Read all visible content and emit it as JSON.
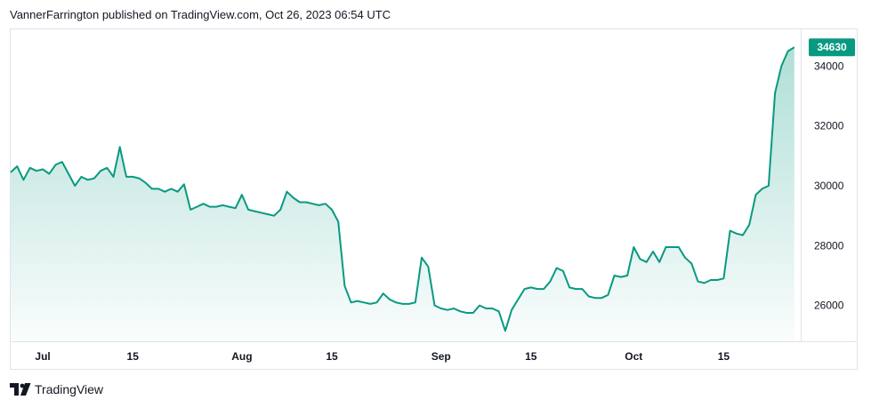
{
  "header": {
    "published_text": "VannerFarrington published on TradingView.com, Oct 26, 2023 06:54 UTC"
  },
  "branding": {
    "logo_icon": "tradingview-logo-icon",
    "name": "TradingView"
  },
  "colors": {
    "line": "#089981",
    "fill_top": "#089981",
    "badge_bg": "#089981",
    "grid": "#e0e3eb",
    "text": "#131722"
  },
  "chart_data": {
    "type": "area",
    "title": "",
    "xlabel": "",
    "ylabel": "",
    "last_price_label": "34630",
    "x_tick_labels": [
      "Jul",
      "15",
      "Aug",
      "15",
      "Sep",
      "15",
      "Oct",
      "15"
    ],
    "x_tick_dates": [
      "2023-07-01",
      "2023-07-15",
      "2023-08-01",
      "2023-08-15",
      "2023-09-01",
      "2023-09-15",
      "2023-10-01",
      "2023-10-15"
    ],
    "y_tick_labels": [
      "34000",
      "32000",
      "30000",
      "28000",
      "26000"
    ],
    "y_ticks": [
      34000,
      32000,
      30000,
      28000,
      26000
    ],
    "xlim": [
      "2023-06-26",
      "2023-10-27"
    ],
    "ylim": [
      24800,
      35200
    ],
    "grid": false,
    "series": [
      {
        "values": [
          [
            "2023-06-26",
            30450
          ],
          [
            "2023-06-27",
            30650
          ],
          [
            "2023-06-28",
            30200
          ],
          [
            "2023-06-29",
            30600
          ],
          [
            "2023-06-30",
            30500
          ],
          [
            "2023-07-01",
            30550
          ],
          [
            "2023-07-02",
            30400
          ],
          [
            "2023-07-03",
            30700
          ],
          [
            "2023-07-04",
            30800
          ],
          [
            "2023-07-05",
            30400
          ],
          [
            "2023-07-06",
            30000
          ],
          [
            "2023-07-07",
            30300
          ],
          [
            "2023-07-08",
            30200
          ],
          [
            "2023-07-09",
            30250
          ],
          [
            "2023-07-10",
            30500
          ],
          [
            "2023-07-11",
            30600
          ],
          [
            "2023-07-12",
            30300
          ],
          [
            "2023-07-13",
            31300
          ],
          [
            "2023-07-14",
            30300
          ],
          [
            "2023-07-15",
            30300
          ],
          [
            "2023-07-16",
            30250
          ],
          [
            "2023-07-17",
            30100
          ],
          [
            "2023-07-18",
            29900
          ],
          [
            "2023-07-19",
            29900
          ],
          [
            "2023-07-20",
            29800
          ],
          [
            "2023-07-21",
            29900
          ],
          [
            "2023-07-22",
            29800
          ],
          [
            "2023-07-23",
            30050
          ],
          [
            "2023-07-24",
            29200
          ],
          [
            "2023-07-25",
            29300
          ],
          [
            "2023-07-26",
            29400
          ],
          [
            "2023-07-27",
            29300
          ],
          [
            "2023-07-28",
            29300
          ],
          [
            "2023-07-29",
            29350
          ],
          [
            "2023-07-30",
            29300
          ],
          [
            "2023-07-31",
            29250
          ],
          [
            "2023-08-01",
            29700
          ],
          [
            "2023-08-02",
            29200
          ],
          [
            "2023-08-03",
            29150
          ],
          [
            "2023-08-04",
            29100
          ],
          [
            "2023-08-05",
            29050
          ],
          [
            "2023-08-06",
            29000
          ],
          [
            "2023-08-07",
            29200
          ],
          [
            "2023-08-08",
            29800
          ],
          [
            "2023-08-09",
            29600
          ],
          [
            "2023-08-10",
            29450
          ],
          [
            "2023-08-11",
            29450
          ],
          [
            "2023-08-12",
            29400
          ],
          [
            "2023-08-13",
            29350
          ],
          [
            "2023-08-14",
            29400
          ],
          [
            "2023-08-15",
            29200
          ],
          [
            "2023-08-16",
            28800
          ],
          [
            "2023-08-17",
            26650
          ],
          [
            "2023-08-18",
            26100
          ],
          [
            "2023-08-19",
            26150
          ],
          [
            "2023-08-20",
            26100
          ],
          [
            "2023-08-21",
            26050
          ],
          [
            "2023-08-22",
            26100
          ],
          [
            "2023-08-23",
            26400
          ],
          [
            "2023-08-24",
            26200
          ],
          [
            "2023-08-25",
            26100
          ],
          [
            "2023-08-26",
            26050
          ],
          [
            "2023-08-27",
            26050
          ],
          [
            "2023-08-28",
            26100
          ],
          [
            "2023-08-29",
            27600
          ],
          [
            "2023-08-30",
            27300
          ],
          [
            "2023-08-31",
            26000
          ],
          [
            "2023-09-01",
            25900
          ],
          [
            "2023-09-02",
            25850
          ],
          [
            "2023-09-03",
            25900
          ],
          [
            "2023-09-04",
            25800
          ],
          [
            "2023-09-05",
            25750
          ],
          [
            "2023-09-06",
            25750
          ],
          [
            "2023-09-07",
            26000
          ],
          [
            "2023-09-08",
            25900
          ],
          [
            "2023-09-09",
            25900
          ],
          [
            "2023-09-10",
            25800
          ],
          [
            "2023-09-11",
            25150
          ],
          [
            "2023-09-12",
            25850
          ],
          [
            "2023-09-13",
            26200
          ],
          [
            "2023-09-14",
            26550
          ],
          [
            "2023-09-15",
            26600
          ],
          [
            "2023-09-16",
            26550
          ],
          [
            "2023-09-17",
            26550
          ],
          [
            "2023-09-18",
            26800
          ],
          [
            "2023-09-19",
            27250
          ],
          [
            "2023-09-20",
            27150
          ],
          [
            "2023-09-21",
            26600
          ],
          [
            "2023-09-22",
            26550
          ],
          [
            "2023-09-23",
            26550
          ],
          [
            "2023-09-24",
            26300
          ],
          [
            "2023-09-25",
            26250
          ],
          [
            "2023-09-26",
            26250
          ],
          [
            "2023-09-27",
            26350
          ],
          [
            "2023-09-28",
            27000
          ],
          [
            "2023-09-29",
            26950
          ],
          [
            "2023-09-30",
            27000
          ],
          [
            "2023-10-01",
            27950
          ],
          [
            "2023-10-02",
            27550
          ],
          [
            "2023-10-03",
            27450
          ],
          [
            "2023-10-04",
            27800
          ],
          [
            "2023-10-05",
            27450
          ],
          [
            "2023-10-06",
            27950
          ],
          [
            "2023-10-07",
            27950
          ],
          [
            "2023-10-08",
            27950
          ],
          [
            "2023-10-09",
            27600
          ],
          [
            "2023-10-10",
            27400
          ],
          [
            "2023-10-11",
            26800
          ],
          [
            "2023-10-12",
            26750
          ],
          [
            "2023-10-13",
            26850
          ],
          [
            "2023-10-14",
            26850
          ],
          [
            "2023-10-15",
            26900
          ],
          [
            "2023-10-16",
            28500
          ],
          [
            "2023-10-17",
            28400
          ],
          [
            "2023-10-18",
            28350
          ],
          [
            "2023-10-19",
            28700
          ],
          [
            "2023-10-20",
            29700
          ],
          [
            "2023-10-21",
            29900
          ],
          [
            "2023-10-22",
            30000
          ],
          [
            "2023-10-23",
            33100
          ],
          [
            "2023-10-24",
            34000
          ],
          [
            "2023-10-25",
            34500
          ],
          [
            "2023-10-26",
            34630
          ]
        ]
      }
    ]
  }
}
